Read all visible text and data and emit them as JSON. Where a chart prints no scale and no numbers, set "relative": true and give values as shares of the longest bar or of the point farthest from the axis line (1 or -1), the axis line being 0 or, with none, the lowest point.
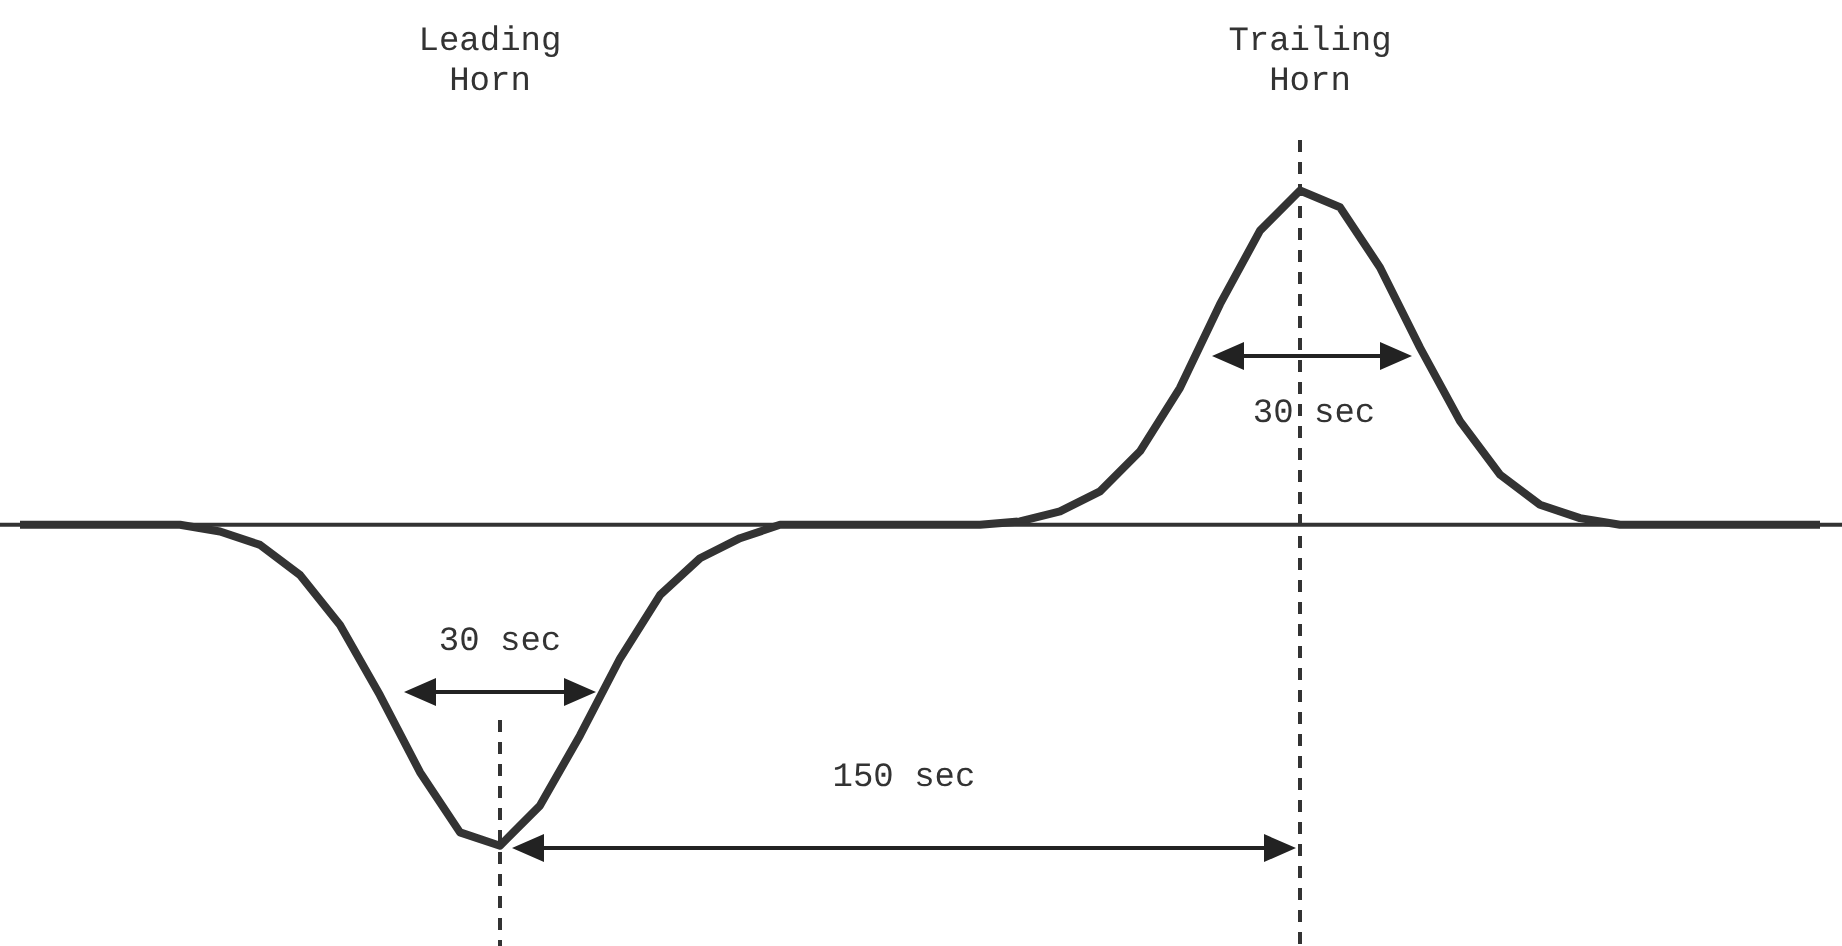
{
  "chart_data": {
    "type": "line",
    "relative": true,
    "categories": [
      null,
      null,
      null,
      null,
      null,
      null,
      null,
      null,
      null,
      null,
      null,
      null,
      null,
      null,
      null,
      null,
      null,
      null,
      null,
      null,
      null,
      null,
      null,
      null,
      null,
      null,
      null,
      null,
      null,
      null,
      null,
      null,
      null,
      null,
      null,
      null,
      null,
      null,
      null,
      null,
      null,
      null,
      null,
      null,
      null,
      null
    ],
    "series": [
      {
        "color": "#333333",
        "values": [
          0,
          0,
          0,
          0,
          0,
          -0.02,
          -0.06,
          -0.15,
          -0.3,
          -0.51,
          -0.74,
          -0.92,
          -0.96,
          -0.84,
          -0.63,
          -0.4,
          -0.21,
          -0.1,
          -0.04,
          0,
          0,
          0,
          0,
          0,
          0,
          0.01,
          0.04,
          0.1,
          0.22,
          0.41,
          0.66,
          0.88,
          1,
          0.95,
          0.77,
          0.53,
          0.31,
          0.15,
          0.06,
          0.02,
          0,
          0,
          0,
          0,
          0,
          0
        ]
      }
    ],
    "ref_lines": [
      {
        "axis": "y",
        "value": 0,
        "color": "#333333",
        "line_style": "solid"
      }
    ],
    "annotations": [
      "Leading Horn",
      "Trailing Horn",
      "30 sec",
      "30 sec",
      "150 sec"
    ]
  }
}
